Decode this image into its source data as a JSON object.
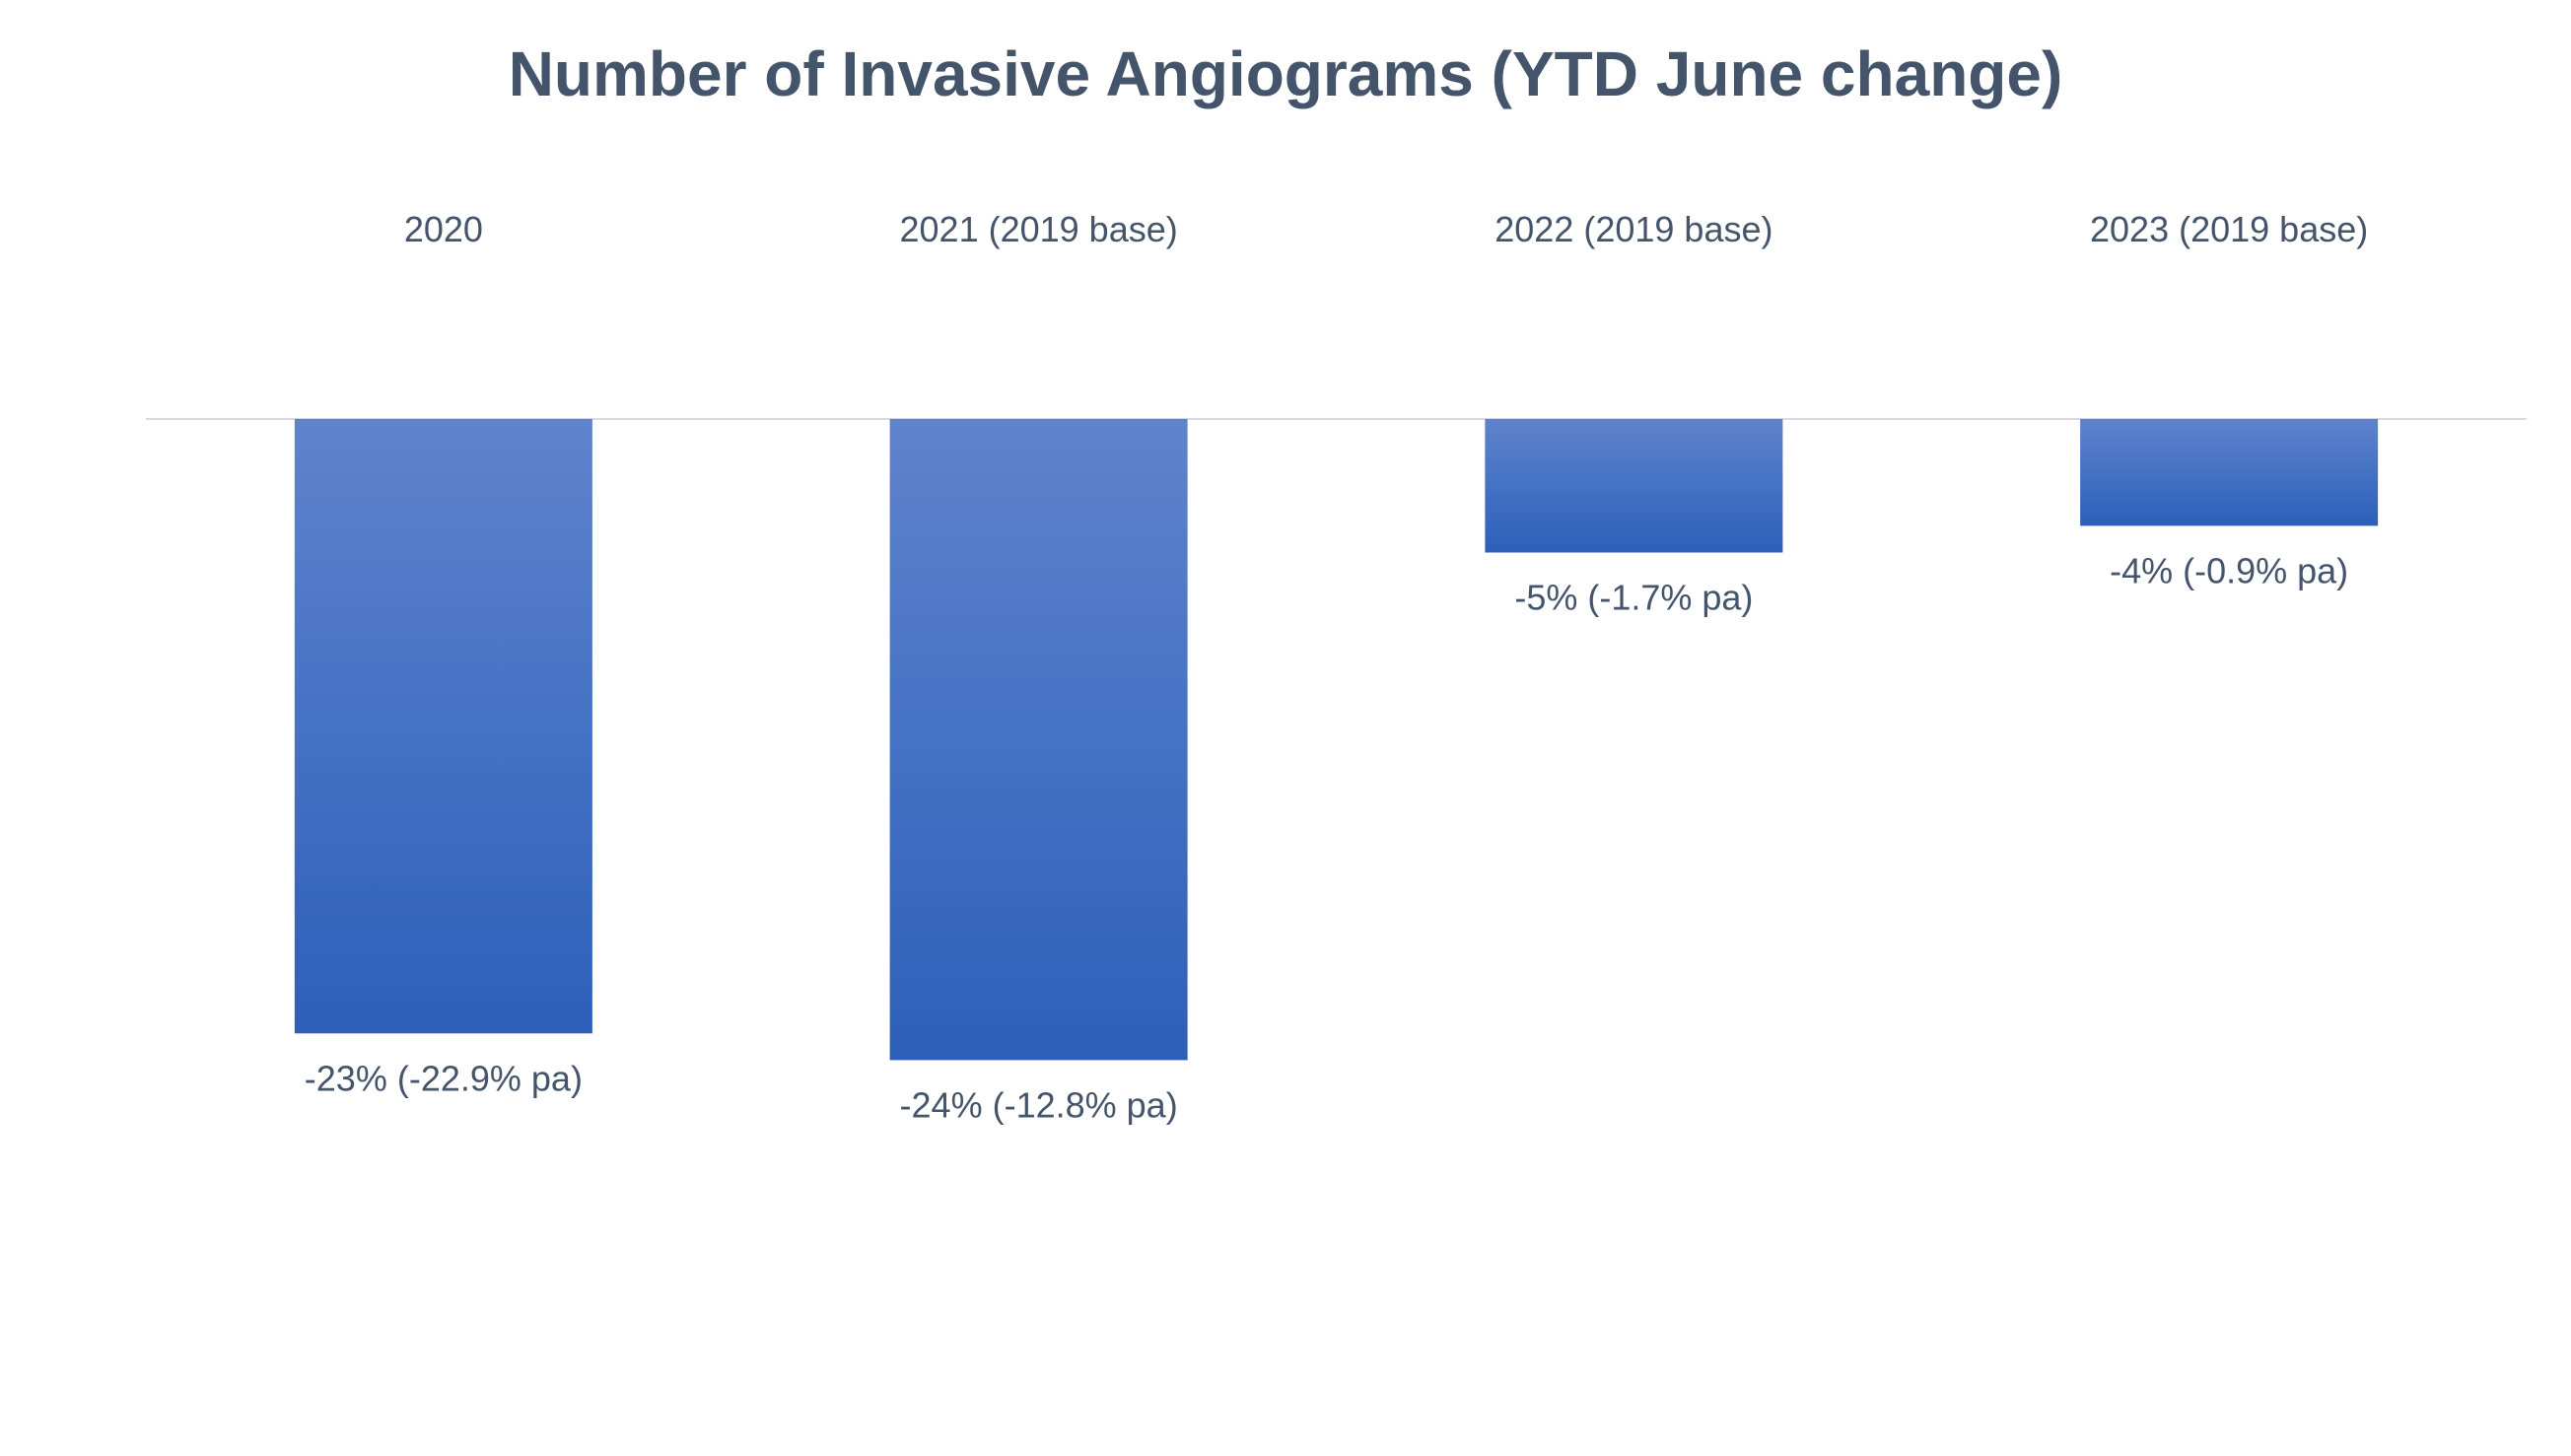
{
  "chart_data": {
    "type": "bar",
    "title": "Number of Invasive Angiograms (YTD June change)",
    "categories": [
      "2020",
      "2021 (2019 base)",
      "2022 (2019 base)",
      "2023 (2019 base)"
    ],
    "values": [
      -23,
      -24,
      -5,
      -4
    ],
    "data_labels": [
      "-23% (-22.9% pa)",
      "-24% (-12.8% pa)",
      "-5% (-1.7% pa)",
      "-4% (-0.9% pa)"
    ],
    "xlabel": "",
    "ylabel": "",
    "ylim": [
      -30,
      0
    ],
    "grid": false,
    "legend": "none",
    "category_axis_position": "top",
    "colors": {
      "bar_top": "#6083cc",
      "bar_mid": "#4472c4",
      "bar_bottom": "#2e5fb8",
      "text": "#44546a",
      "axis": "#d9d9e6"
    }
  }
}
